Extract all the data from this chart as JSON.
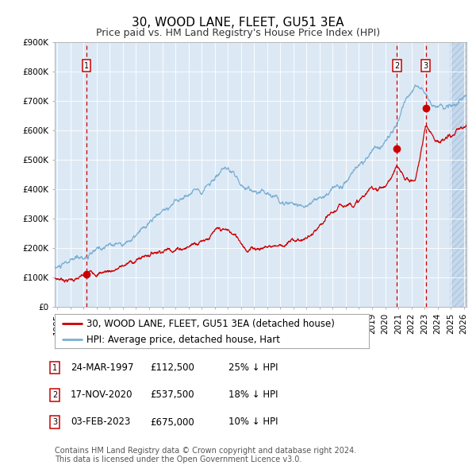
{
  "title": "30, WOOD LANE, FLEET, GU51 3EA",
  "subtitle": "Price paid vs. HM Land Registry's House Price Index (HPI)",
  "legend_label_red": "30, WOOD LANE, FLEET, GU51 3EA (detached house)",
  "legend_label_blue": "HPI: Average price, detached house, Hart",
  "footer1": "Contains HM Land Registry data © Crown copyright and database right 2024.",
  "footer2": "This data is licensed under the Open Government Licence v3.0.",
  "transactions": [
    {
      "num": 1,
      "date": "24-MAR-1997",
      "price": 112500,
      "pct": "25%",
      "dir": "↓",
      "year": 1997.22
    },
    {
      "num": 2,
      "date": "17-NOV-2020",
      "price": 537500,
      "pct": "18%",
      "dir": "↓",
      "year": 2020.88
    },
    {
      "num": 3,
      "date": "03-FEB-2023",
      "price": 675000,
      "pct": "10%",
      "dir": "↓",
      "year": 2023.09
    }
  ],
  "xmin": 1994.8,
  "xmax": 2026.2,
  "ymin": 0,
  "ymax": 900000,
  "yticks": [
    0,
    100000,
    200000,
    300000,
    400000,
    500000,
    600000,
    700000,
    800000,
    900000
  ],
  "ytick_labels": [
    "£0",
    "£100K",
    "£200K",
    "£300K",
    "£400K",
    "£500K",
    "£600K",
    "£700K",
    "£800K",
    "£900K"
  ],
  "plot_bg_color": "#dce9f5",
  "hatch_color": "#c5d8ec",
  "grid_color": "#ffffff",
  "red_line_color": "#cc0000",
  "blue_line_color": "#7bafd4",
  "dashed_vline_color": "#cc0000",
  "marker_color": "#cc0000",
  "box_edge_color": "#cc0000",
  "title_fontsize": 11,
  "subtitle_fontsize": 9,
  "tick_fontsize": 7.5,
  "legend_fontsize": 8.5,
  "table_fontsize": 8.5,
  "footer_fontsize": 7,
  "hatch_start": 2024.9
}
